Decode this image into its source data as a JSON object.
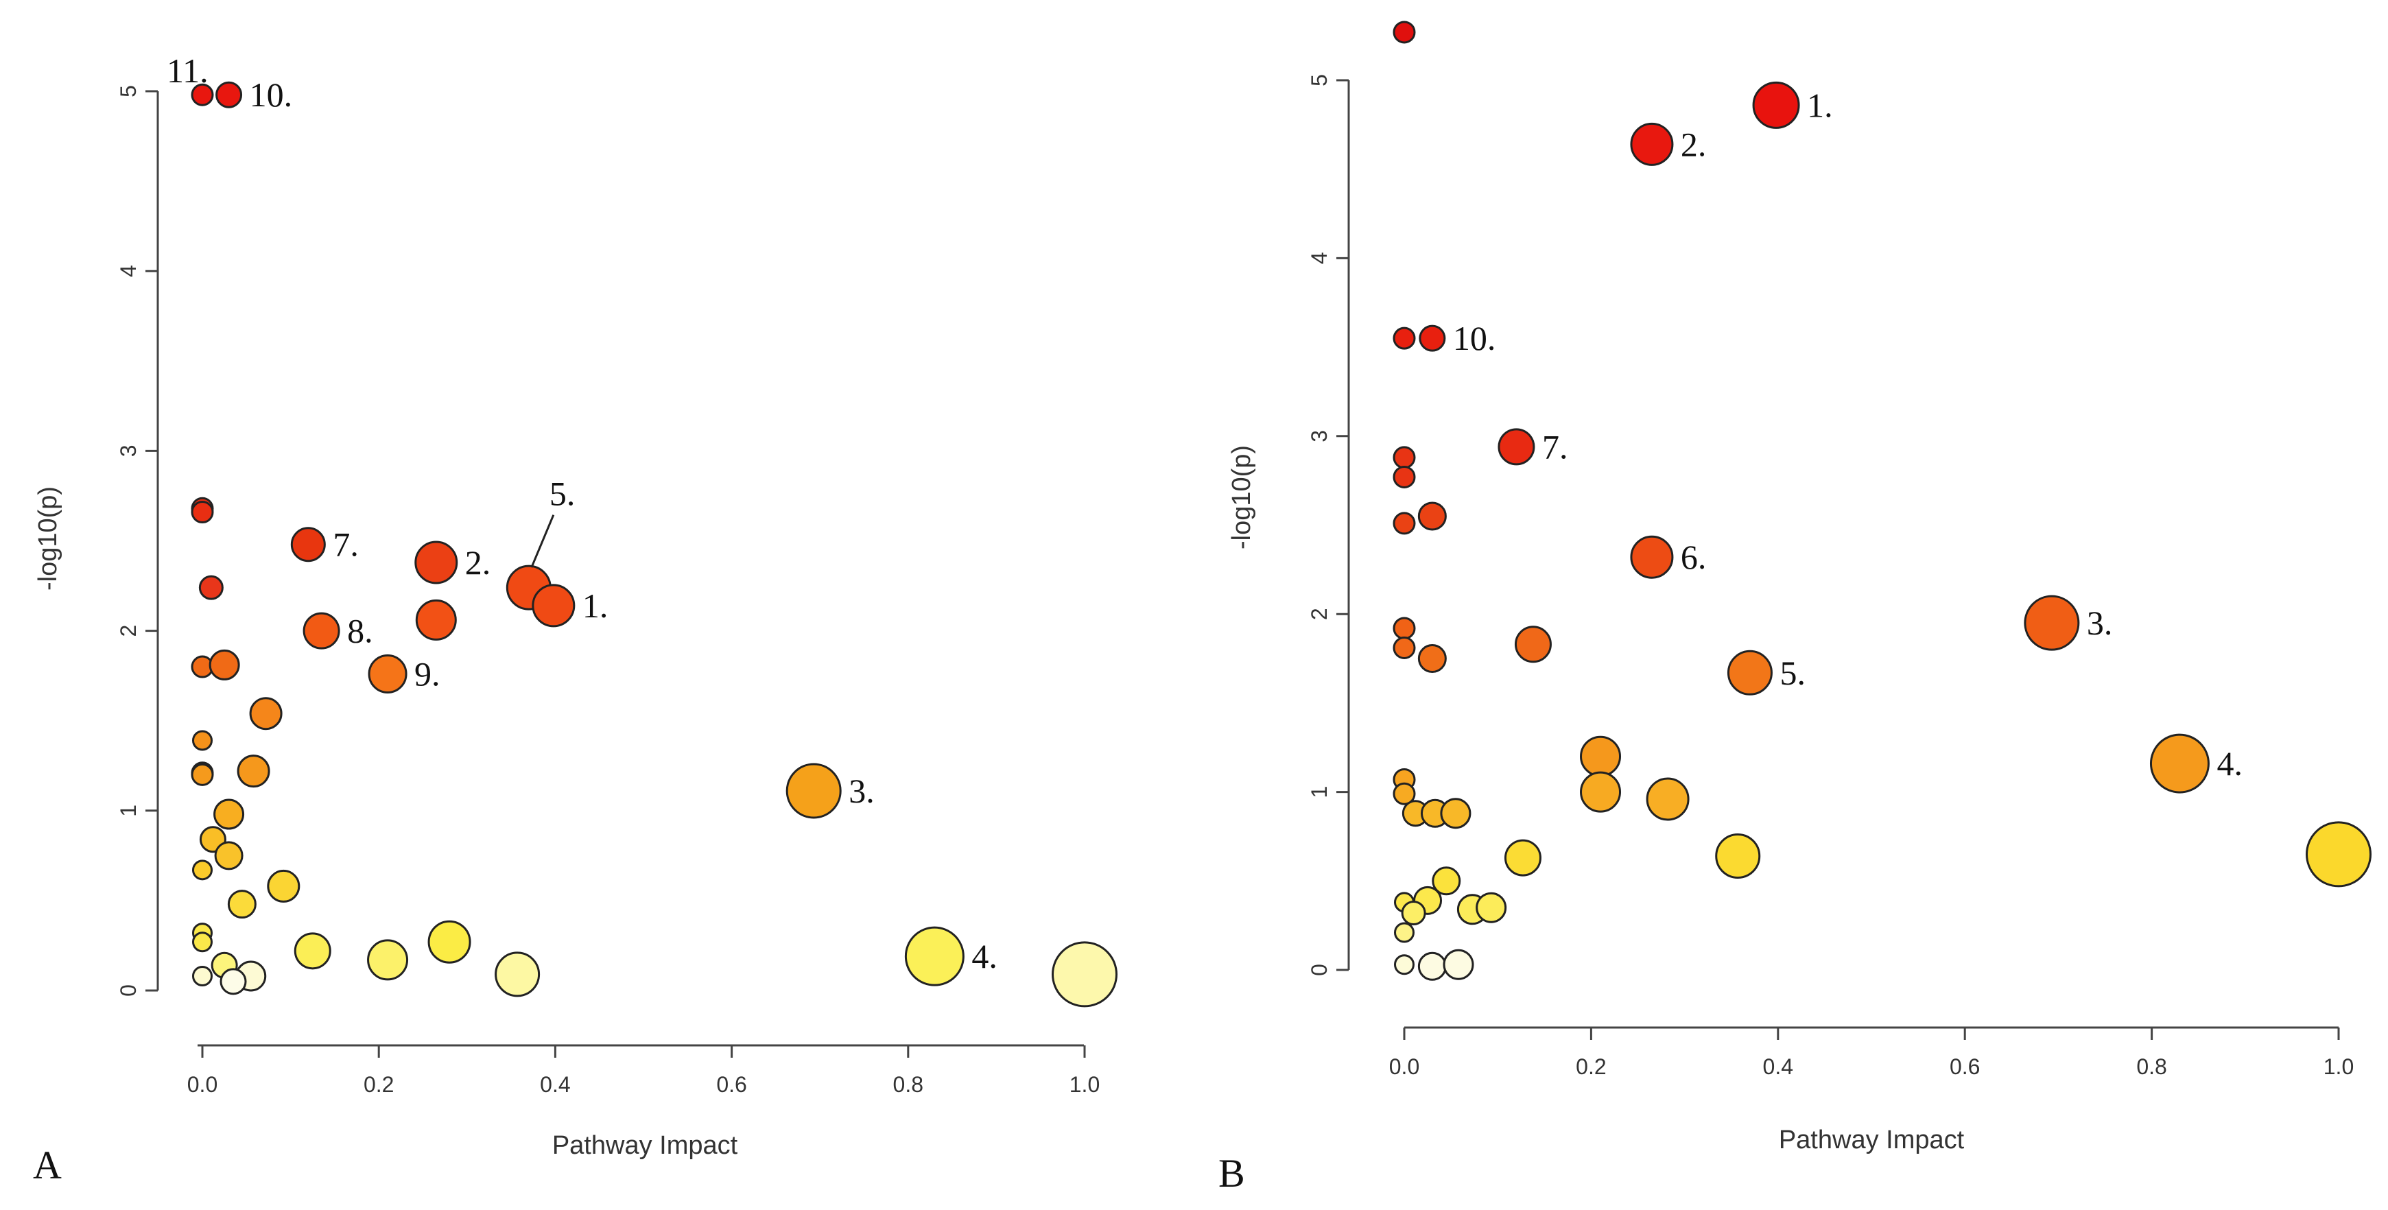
{
  "chart_data": [
    {
      "type": "scatter",
      "panel_label": "A",
      "xlabel": "Pathway Impact",
      "ylabel": "-log10(p)",
      "xlim": [
        0,
        1
      ],
      "ylim": [
        0,
        5
      ],
      "x_ticks": [
        0.0,
        0.2,
        0.4,
        0.6,
        0.8,
        1.0
      ],
      "x_tick_labels": [
        "0.0",
        "0.2",
        "0.4",
        "0.6",
        "0.8",
        "1.0"
      ],
      "y_ticks": [
        0,
        1,
        2,
        3,
        4,
        5
      ],
      "y_tick_labels": [
        "0",
        "1",
        "2",
        "3",
        "4",
        "5"
      ],
      "points": [
        {
          "x": 0.0,
          "y": 4.98,
          "r": 0.5,
          "color": "#e8170f",
          "label": "11."
        },
        {
          "x": 0.03,
          "y": 4.98,
          "r": 0.6,
          "color": "#e8170f",
          "label": "10."
        },
        {
          "x": 0.0,
          "y": 2.68,
          "r": 0.5,
          "color": "#e82e12",
          "label": ""
        },
        {
          "x": 0.0,
          "y": 2.66,
          "r": 0.5,
          "color": "#e82e12",
          "label": ""
        },
        {
          "x": 0.12,
          "y": 2.48,
          "r": 0.8,
          "color": "#e8360f",
          "label": "7."
        },
        {
          "x": 0.265,
          "y": 2.38,
          "r": 1.0,
          "color": "#eb4014",
          "label": "2."
        },
        {
          "x": 0.37,
          "y": 2.24,
          "r": 1.05,
          "color": "#f04a14",
          "label": "5."
        },
        {
          "x": 0.398,
          "y": 2.14,
          "r": 1.0,
          "color": "#f04a14",
          "label": "1."
        },
        {
          "x": 0.265,
          "y": 2.06,
          "r": 0.95,
          "color": "#f25115",
          "label": ""
        },
        {
          "x": 0.01,
          "y": 2.24,
          "r": 0.55,
          "color": "#e8361a",
          "label": ""
        },
        {
          "x": 0.135,
          "y": 2.0,
          "r": 0.85,
          "color": "#f25a14",
          "label": "8."
        },
        {
          "x": 0.0,
          "y": 1.8,
          "r": 0.5,
          "color": "#f06a16",
          "label": ""
        },
        {
          "x": 0.025,
          "y": 1.81,
          "r": 0.7,
          "color": "#f06a16",
          "label": ""
        },
        {
          "x": 0.21,
          "y": 1.76,
          "r": 0.9,
          "color": "#f57418",
          "label": "9."
        },
        {
          "x": 0.072,
          "y": 1.54,
          "r": 0.75,
          "color": "#f5861a",
          "label": ""
        },
        {
          "x": 0.0,
          "y": 1.39,
          "r": 0.45,
          "color": "#f5921a",
          "label": ""
        },
        {
          "x": 0.0,
          "y": 1.21,
          "r": 0.5,
          "color": "#f59a1c",
          "label": ""
        },
        {
          "x": 0.0,
          "y": 1.2,
          "r": 0.5,
          "color": "#f59a1c",
          "label": ""
        },
        {
          "x": 0.058,
          "y": 1.22,
          "r": 0.75,
          "color": "#f5981c",
          "label": ""
        },
        {
          "x": 0.693,
          "y": 1.11,
          "r": 1.3,
          "color": "#f5a11a",
          "label": "3."
        },
        {
          "x": 0.03,
          "y": 0.98,
          "r": 0.7,
          "color": "#f8ae20",
          "label": ""
        },
        {
          "x": 0.012,
          "y": 0.84,
          "r": 0.6,
          "color": "#f9be26",
          "label": ""
        },
        {
          "x": 0.03,
          "y": 0.75,
          "r": 0.65,
          "color": "#f9c22a",
          "label": ""
        },
        {
          "x": 0.0,
          "y": 0.67,
          "r": 0.45,
          "color": "#fbcb2b",
          "label": ""
        },
        {
          "x": 0.092,
          "y": 0.58,
          "r": 0.75,
          "color": "#fbd533",
          "label": ""
        },
        {
          "x": 0.045,
          "y": 0.48,
          "r": 0.65,
          "color": "#fbdb3a",
          "label": ""
        },
        {
          "x": 0.0,
          "y": 0.32,
          "r": 0.45,
          "color": "#fbe84a",
          "label": ""
        },
        {
          "x": 0.0,
          "y": 0.27,
          "r": 0.45,
          "color": "#fbe84a",
          "label": ""
        },
        {
          "x": 0.28,
          "y": 0.27,
          "r": 1.0,
          "color": "#fbec45",
          "label": ""
        },
        {
          "x": 0.125,
          "y": 0.22,
          "r": 0.85,
          "color": "#fbee56",
          "label": ""
        },
        {
          "x": 0.83,
          "y": 0.19,
          "r": 1.4,
          "color": "#fbf058",
          "label": "4."
        },
        {
          "x": 0.21,
          "y": 0.17,
          "r": 0.95,
          "color": "#fcf16a",
          "label": ""
        },
        {
          "x": 0.025,
          "y": 0.14,
          "r": 0.6,
          "color": "#fcf47c",
          "label": ""
        },
        {
          "x": 0.357,
          "y": 0.09,
          "r": 1.05,
          "color": "#fdf8a3",
          "label": ""
        },
        {
          "x": 1.0,
          "y": 0.09,
          "r": 1.55,
          "color": "#fdf8ac",
          "label": ""
        },
        {
          "x": 0.0,
          "y": 0.08,
          "r": 0.45,
          "color": "#fdfad0",
          "label": ""
        },
        {
          "x": 0.055,
          "y": 0.08,
          "r": 0.7,
          "color": "#fdfad4",
          "label": ""
        },
        {
          "x": 0.035,
          "y": 0.05,
          "r": 0.6,
          "color": "#fdfce8",
          "label": ""
        }
      ]
    },
    {
      "type": "scatter",
      "panel_label": "B",
      "xlabel": "Pathway Impact",
      "ylabel": "-log10(p)",
      "xlim": [
        0,
        1
      ],
      "ylim": [
        0,
        5
      ],
      "x_ticks": [
        0.0,
        0.2,
        0.4,
        0.6,
        0.8,
        1.0
      ],
      "x_tick_labels": [
        "0.0",
        "0.2",
        "0.4",
        "0.6",
        "0.8",
        "1.0"
      ],
      "y_ticks": [
        0,
        1,
        2,
        3,
        4,
        5
      ],
      "y_tick_labels": [
        "0",
        "1",
        "2",
        "3",
        "4",
        "5"
      ],
      "points": [
        {
          "x": 0.0,
          "y": 5.27,
          "r": 0.5,
          "color": "#e0100e",
          "label": ""
        },
        {
          "x": 0.398,
          "y": 4.86,
          "r": 1.1,
          "color": "#e8130e",
          "label": "1."
        },
        {
          "x": 0.265,
          "y": 4.64,
          "r": 1.0,
          "color": "#e8180f",
          "label": "2."
        },
        {
          "x": 0.0,
          "y": 3.55,
          "r": 0.5,
          "color": "#e8200f",
          "label": ""
        },
        {
          "x": 0.03,
          "y": 3.55,
          "r": 0.6,
          "color": "#e8200f",
          "label": "10."
        },
        {
          "x": 0.12,
          "y": 2.94,
          "r": 0.85,
          "color": "#e82a12",
          "label": "7."
        },
        {
          "x": 0.0,
          "y": 2.88,
          "r": 0.5,
          "color": "#e83414",
          "label": ""
        },
        {
          "x": 0.0,
          "y": 2.77,
          "r": 0.5,
          "color": "#e83414",
          "label": ""
        },
        {
          "x": 0.03,
          "y": 2.55,
          "r": 0.65,
          "color": "#ea4214",
          "label": ""
        },
        {
          "x": 0.0,
          "y": 2.51,
          "r": 0.5,
          "color": "#ea4214",
          "label": ""
        },
        {
          "x": 0.265,
          "y": 2.32,
          "r": 1.0,
          "color": "#ed4c14",
          "label": "6."
        },
        {
          "x": 0.693,
          "y": 1.95,
          "r": 1.3,
          "color": "#f05e15",
          "label": "3."
        },
        {
          "x": 0.0,
          "y": 1.92,
          "r": 0.5,
          "color": "#f06216",
          "label": ""
        },
        {
          "x": 0.138,
          "y": 1.83,
          "r": 0.85,
          "color": "#f06818",
          "label": ""
        },
        {
          "x": 0.0,
          "y": 1.81,
          "r": 0.5,
          "color": "#f06818",
          "label": ""
        },
        {
          "x": 0.03,
          "y": 1.75,
          "r": 0.65,
          "color": "#f06e18",
          "label": ""
        },
        {
          "x": 0.37,
          "y": 1.67,
          "r": 1.05,
          "color": "#f27618",
          "label": "5."
        },
        {
          "x": 0.21,
          "y": 1.2,
          "r": 0.95,
          "color": "#f5981c",
          "label": ""
        },
        {
          "x": 0.83,
          "y": 1.16,
          "r": 1.4,
          "color": "#f59a1c",
          "label": "4."
        },
        {
          "x": 0.0,
          "y": 1.07,
          "r": 0.5,
          "color": "#f7a420",
          "label": ""
        },
        {
          "x": 0.21,
          "y": 1.0,
          "r": 0.95,
          "color": "#f7aa22",
          "label": ""
        },
        {
          "x": 0.0,
          "y": 0.99,
          "r": 0.5,
          "color": "#f7aa22",
          "label": ""
        },
        {
          "x": 0.282,
          "y": 0.96,
          "r": 1.0,
          "color": "#f8ae24",
          "label": ""
        },
        {
          "x": 0.012,
          "y": 0.88,
          "r": 0.6,
          "color": "#f8b828",
          "label": ""
        },
        {
          "x": 0.033,
          "y": 0.88,
          "r": 0.65,
          "color": "#f8b828",
          "label": ""
        },
        {
          "x": 0.055,
          "y": 0.88,
          "r": 0.7,
          "color": "#f8b828",
          "label": ""
        },
        {
          "x": 1.0,
          "y": 0.65,
          "r": 1.55,
          "color": "#fbd82c",
          "label": ""
        },
        {
          "x": 0.357,
          "y": 0.64,
          "r": 1.05,
          "color": "#fbda30",
          "label": ""
        },
        {
          "x": 0.127,
          "y": 0.63,
          "r": 0.85,
          "color": "#fbdc34",
          "label": ""
        },
        {
          "x": 0.045,
          "y": 0.5,
          "r": 0.65,
          "color": "#fbe23c",
          "label": ""
        },
        {
          "x": 0.0,
          "y": 0.38,
          "r": 0.45,
          "color": "#fce84c",
          "label": ""
        },
        {
          "x": 0.025,
          "y": 0.39,
          "r": 0.65,
          "color": "#fce84c",
          "label": ""
        },
        {
          "x": 0.073,
          "y": 0.34,
          "r": 0.7,
          "color": "#fcec5a",
          "label": ""
        },
        {
          "x": 0.093,
          "y": 0.35,
          "r": 0.7,
          "color": "#fcec5a",
          "label": ""
        },
        {
          "x": 0.01,
          "y": 0.32,
          "r": 0.55,
          "color": "#fcee66",
          "label": ""
        },
        {
          "x": 0.0,
          "y": 0.21,
          "r": 0.45,
          "color": "#fdf388",
          "label": ""
        },
        {
          "x": 0.0,
          "y": 0.03,
          "r": 0.45,
          "color": "#fdfbd8",
          "label": ""
        },
        {
          "x": 0.03,
          "y": 0.02,
          "r": 0.65,
          "color": "#fdfbe2",
          "label": ""
        },
        {
          "x": 0.058,
          "y": 0.03,
          "r": 0.7,
          "color": "#fdfbe2",
          "label": ""
        }
      ]
    }
  ]
}
